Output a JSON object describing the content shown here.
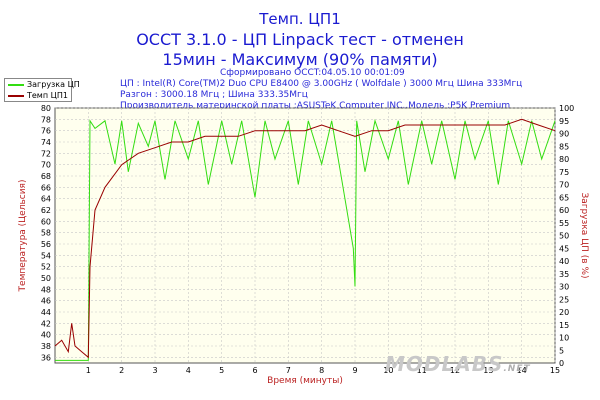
{
  "title": {
    "line1": "Темп. ЦП1",
    "line2": "OCCT 3.1.0 - ЦП Linpack тест - отменен",
    "line3": "15мин - Максимум (90% памяти)"
  },
  "meta": {
    "generated": "Сформировано OCCT:04.05.10 00:01:09",
    "cpu": "ЦП : Intel(R) Core(TM)2 Duo CPU E8400 @ 3.00GHz ( Wolfdale ) 3000 Мгц Шина 333Мгц",
    "oc": "Разгон : 3000.18 Мгц ; Шина 333.35Мгц",
    "mb": "Производитель материнской платы :ASUSTeK Computer INC.,Модель :P5K Premium"
  },
  "legend": {
    "load": "Загрузка ЦП",
    "temp": "Темп ЦП1"
  },
  "logo": {
    "text": "MODLABS",
    "suffix": ".NET"
  },
  "colors": {
    "load": "#33dd11",
    "temp": "#990000",
    "axis_label": "#bb2222",
    "grid": "#c8c8c8",
    "plot_bg": "#ffffee"
  },
  "chart_data": {
    "type": "line",
    "xlabel": "Время (минуты)",
    "ylabel_left": "Температура (Цельсия)",
    "ylabel_right": "Загрузка ЦП (в %)",
    "xlim": [
      0,
      15
    ],
    "ylim_left": [
      35,
      80
    ],
    "ylim_right": [
      0,
      100
    ],
    "x_ticks": [
      1,
      2,
      3,
      4,
      5,
      6,
      7,
      8,
      9,
      10,
      11,
      12,
      13,
      14,
      15
    ],
    "y_ticks_left": [
      36,
      38,
      40,
      42,
      44,
      46,
      48,
      50,
      52,
      54,
      56,
      58,
      60,
      62,
      64,
      66,
      68,
      70,
      72,
      74,
      76,
      78,
      80
    ],
    "y_ticks_right": [
      0,
      5,
      10,
      15,
      20,
      25,
      30,
      35,
      40,
      45,
      50,
      55,
      60,
      65,
      70,
      75,
      80,
      85,
      90,
      95,
      100
    ],
    "series": [
      {
        "name": "Загрузка ЦП",
        "axis": "right",
        "x": [
          0,
          0.5,
          1.0,
          1.05,
          1.2,
          1.5,
          1.8,
          2.0,
          2.2,
          2.5,
          2.8,
          3.0,
          3.3,
          3.6,
          4.0,
          4.3,
          4.6,
          5.0,
          5.3,
          5.6,
          6.0,
          6.3,
          6.6,
          7.0,
          7.3,
          7.6,
          8.0,
          8.3,
          8.6,
          8.95,
          9.0,
          9.05,
          9.3,
          9.6,
          10.0,
          10.3,
          10.6,
          11.0,
          11.3,
          11.6,
          12.0,
          12.3,
          12.6,
          13.0,
          13.3,
          13.6,
          14.0,
          14.3,
          14.6,
          15.0
        ],
        "values": [
          1,
          1,
          1,
          95,
          92,
          95,
          78,
          95,
          75,
          94,
          85,
          95,
          72,
          95,
          80,
          95,
          70,
          95,
          78,
          95,
          65,
          95,
          80,
          95,
          70,
          95,
          78,
          95,
          72,
          45,
          30,
          95,
          75,
          95,
          80,
          95,
          70,
          95,
          78,
          95,
          72,
          95,
          80,
          95,
          70,
          95,
          78,
          95,
          80,
          95
        ]
      },
      {
        "name": "Темп ЦП1",
        "axis": "left",
        "x": [
          0,
          0.2,
          0.4,
          0.5,
          0.6,
          0.8,
          1.0,
          1.05,
          1.2,
          1.5,
          2.0,
          2.5,
          3.0,
          3.5,
          4.0,
          4.5,
          5.0,
          5.5,
          6.0,
          6.5,
          7.0,
          7.5,
          8.0,
          8.5,
          9.0,
          9.5,
          10.0,
          10.5,
          11.0,
          11.5,
          12.0,
          12.5,
          13.0,
          13.5,
          14.0,
          14.5,
          15.0
        ],
        "values": [
          38,
          39,
          37,
          42,
          38,
          37,
          36,
          52,
          62,
          66,
          70,
          72,
          73,
          74,
          74,
          75,
          75,
          75,
          76,
          76,
          76,
          76,
          77,
          76,
          75,
          76,
          76,
          77,
          77,
          77,
          77,
          77,
          77,
          77,
          78,
          77,
          76
        ]
      }
    ]
  }
}
